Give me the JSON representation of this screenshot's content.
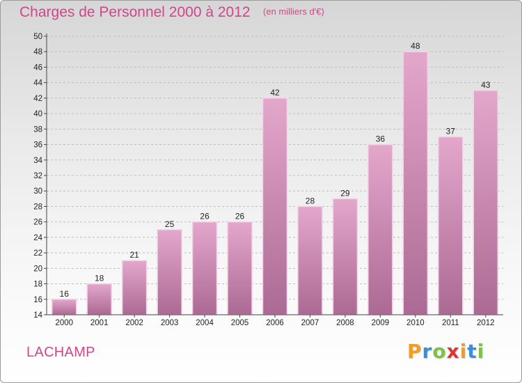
{
  "header": {
    "title": "Charges de Personnel 2000 à 2012",
    "subtitle": "(en milliers d'€)"
  },
  "footer": {
    "commune": "LACHAMP",
    "brand": "Proxiti",
    "brand_letters": [
      {
        "ch": "P",
        "color": "#f39c1f"
      },
      {
        "ch": "r",
        "color": "#3a8fd9"
      },
      {
        "ch": "o",
        "color": "#7cc243"
      },
      {
        "ch": "x",
        "color": "#e2342f"
      },
      {
        "ch": "i",
        "color": "#f39c1f"
      },
      {
        "ch": "t",
        "color": "#3a8fd9"
      },
      {
        "ch": "i",
        "color": "#7cc243"
      }
    ]
  },
  "colors": {
    "bar_top": "#e4a7cc",
    "bar_bottom": "#ab6a93",
    "bar_edge": "#f3d3e6",
    "title": "#d2448c",
    "axis": "#444444",
    "grid": "#bdbdbd"
  },
  "chart_data": {
    "type": "bar",
    "title": "Charges de Personnel 2000 à 2012",
    "subtitle": "(en milliers d'€)",
    "xlabel": "",
    "ylabel": "",
    "categories": [
      "2000",
      "2001",
      "2002",
      "2003",
      "2004",
      "2005",
      "2006",
      "2007",
      "2008",
      "2009",
      "2010",
      "2011",
      "2012"
    ],
    "values": [
      16,
      18,
      21,
      25,
      26,
      26,
      42,
      28,
      29,
      36,
      48,
      37,
      43
    ],
    "ylim": [
      14,
      50
    ],
    "yticks": [
      14,
      16,
      18,
      20,
      22,
      24,
      26,
      28,
      30,
      32,
      34,
      36,
      38,
      40,
      42,
      44,
      46,
      48,
      50
    ],
    "grid": true,
    "data_labels": true
  }
}
